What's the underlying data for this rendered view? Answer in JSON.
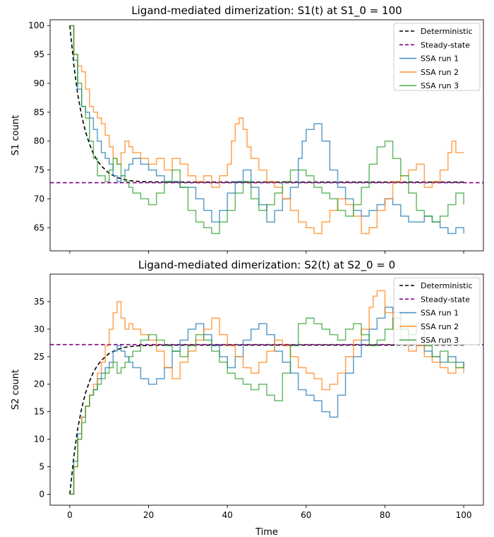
{
  "figure": {
    "xlabel": "Time"
  },
  "chart_data": [
    {
      "type": "line",
      "title": "Ligand-mediated dimerization: S1(t) at S1_0 = 100",
      "xlabel": "",
      "ylabel": "S1 count",
      "xlim": [
        -5,
        105
      ],
      "ylim": [
        61,
        101
      ],
      "xticks": [
        0,
        20,
        40,
        60,
        80,
        100
      ],
      "yticks": [
        65,
        70,
        75,
        80,
        85,
        90,
        95,
        100
      ],
      "legend_position": "top-right",
      "legend": [
        "Deterministic",
        "Steady-state",
        "SSA run 1",
        "SSA run 2",
        "SSA run 3"
      ],
      "series": [
        {
          "name": "Deterministic",
          "style": "dashed",
          "color": "#000000",
          "x": [
            0,
            1,
            2,
            3,
            4,
            5,
            6,
            7,
            8,
            10,
            12,
            14,
            16,
            18,
            20,
            25,
            30,
            40,
            60,
            100
          ],
          "y": [
            100,
            93.3,
            88.1,
            84.4,
            81.6,
            79.5,
            77.8,
            76.6,
            75.7,
            74.4,
            73.7,
            73.3,
            73.1,
            73.0,
            72.95,
            72.9,
            72.9,
            72.9,
            72.9,
            72.9
          ]
        },
        {
          "name": "Steady-state",
          "style": "dashed",
          "color": "#800080",
          "y_const": 72.8
        },
        {
          "name": "SSA run 1",
          "color": "#1f77b4",
          "x": [
            0,
            1,
            2,
            3,
            4,
            5,
            6,
            7,
            8,
            9,
            10,
            11,
            12,
            13,
            14,
            15,
            16,
            18,
            20,
            22,
            24,
            26,
            28,
            30,
            32,
            34,
            36,
            38,
            40,
            42,
            44,
            46,
            48,
            50,
            52,
            54,
            56,
            58,
            59,
            60,
            62,
            64,
            66,
            68,
            70,
            72,
            74,
            76,
            78,
            80,
            82,
            84,
            86,
            88,
            90,
            92,
            94,
            96,
            98,
            100
          ],
          "y": [
            100,
            94,
            89,
            86,
            85,
            84,
            82,
            80,
            78,
            77,
            76,
            74,
            73,
            74,
            75,
            76,
            77,
            76,
            75,
            74,
            73,
            73,
            72,
            72,
            70,
            68,
            66,
            68,
            71,
            73,
            75,
            72,
            69,
            66,
            68,
            70,
            72,
            77,
            80,
            82,
            83,
            80,
            75,
            72,
            70,
            68,
            67,
            68,
            69,
            70,
            69,
            67,
            66,
            66,
            67,
            66,
            65,
            64,
            65,
            64
          ]
        },
        {
          "name": "SSA run 2",
          "color": "#ff7f0e",
          "x": [
            0,
            1,
            2,
            3,
            4,
            5,
            6,
            7,
            8,
            9,
            10,
            11,
            12,
            13,
            14,
            15,
            16,
            18,
            20,
            22,
            24,
            26,
            28,
            30,
            32,
            34,
            36,
            38,
            40,
            41,
            42,
            43,
            44,
            45,
            46,
            48,
            50,
            52,
            54,
            56,
            58,
            60,
            62,
            64,
            66,
            68,
            70,
            72,
            74,
            76,
            78,
            80,
            82,
            84,
            86,
            88,
            90,
            92,
            94,
            96,
            97,
            98,
            100
          ],
          "y": [
            100,
            95,
            93,
            92,
            89,
            86,
            85,
            84,
            83,
            81,
            79,
            77,
            76,
            78,
            80,
            79,
            78,
            77,
            76,
            77,
            75,
            77,
            76,
            74,
            73,
            74,
            72,
            74,
            76,
            80,
            83,
            84,
            82,
            79,
            77,
            75,
            73,
            72,
            70,
            68,
            66,
            65,
            64,
            66,
            68,
            70,
            69,
            67,
            64,
            65,
            68,
            70,
            73,
            74,
            75,
            76,
            72,
            73,
            75,
            78,
            80,
            78,
            78
          ]
        },
        {
          "name": "SSA run 3",
          "color": "#2ca02c",
          "x": [
            0,
            1,
            2,
            3,
            4,
            5,
            6,
            7,
            8,
            9,
            10,
            11,
            12,
            13,
            14,
            15,
            16,
            18,
            20,
            22,
            24,
            26,
            28,
            30,
            32,
            34,
            36,
            38,
            40,
            42,
            44,
            46,
            48,
            50,
            52,
            54,
            56,
            58,
            60,
            62,
            64,
            66,
            68,
            70,
            72,
            74,
            76,
            78,
            80,
            82,
            84,
            86,
            88,
            90,
            92,
            94,
            96,
            98,
            100
          ],
          "y": [
            100,
            95,
            90,
            86,
            84,
            80,
            77,
            74,
            74,
            73,
            75,
            77,
            76,
            74,
            73,
            72,
            71,
            70,
            69,
            71,
            73,
            75,
            72,
            68,
            66,
            65,
            64,
            66,
            68,
            71,
            73,
            70,
            68,
            69,
            71,
            73,
            75,
            75,
            74,
            72,
            71,
            70,
            68,
            67,
            69,
            72,
            76,
            79,
            80,
            77,
            74,
            71,
            68,
            67,
            66,
            67,
            69,
            71,
            69
          ]
        }
      ]
    },
    {
      "type": "line",
      "title": "Ligand-mediated dimerization: S2(t) at S2_0 = 0",
      "xlabel": "Time",
      "ylabel": "S2 count",
      "xlim": [
        -5,
        105
      ],
      "ylim": [
        -2,
        40
      ],
      "xticks": [
        0,
        20,
        40,
        60,
        80,
        100
      ],
      "yticks": [
        0,
        5,
        10,
        15,
        20,
        25,
        30,
        35
      ],
      "legend_position": "top-right",
      "legend": [
        "Deterministic",
        "Steady-state",
        "SSA run 1",
        "SSA run 2",
        "SSA run 3"
      ],
      "series": [
        {
          "name": "Deterministic",
          "style": "dashed",
          "color": "#000000",
          "x": [
            0,
            1,
            2,
            3,
            4,
            5,
            6,
            7,
            8,
            10,
            12,
            14,
            16,
            18,
            20,
            25,
            30,
            40,
            60,
            100
          ],
          "y": [
            0,
            6.7,
            11.9,
            15.6,
            18.4,
            20.5,
            22.2,
            23.4,
            24.3,
            25.6,
            26.3,
            26.7,
            26.9,
            27.0,
            27.05,
            27.1,
            27.1,
            27.1,
            27.1,
            27.1
          ]
        },
        {
          "name": "Steady-state",
          "style": "dashed",
          "color": "#800080",
          "y_const": 27.2
        },
        {
          "name": "SSA run 1",
          "color": "#1f77b4",
          "x": [
            0,
            1,
            2,
            3,
            4,
            5,
            6,
            7,
            8,
            9,
            10,
            11,
            12,
            13,
            14,
            15,
            16,
            18,
            20,
            22,
            24,
            26,
            28,
            30,
            32,
            34,
            36,
            38,
            40,
            42,
            44,
            46,
            48,
            50,
            52,
            54,
            56,
            58,
            60,
            62,
            64,
            66,
            68,
            70,
            72,
            74,
            76,
            78,
            80,
            82,
            84,
            86,
            88,
            90,
            92,
            94,
            96,
            98,
            100
          ],
          "y": [
            0,
            6,
            11,
            14,
            16,
            18,
            19,
            21,
            22,
            23,
            24,
            26,
            27,
            26,
            25,
            24,
            23,
            21,
            20,
            21,
            23,
            26,
            28,
            30,
            31,
            29,
            27,
            25,
            23,
            25,
            28,
            30,
            31,
            29,
            26,
            24,
            22,
            19,
            18,
            17,
            15,
            14,
            18,
            22,
            25,
            28,
            30,
            32,
            34,
            33,
            30,
            28,
            27,
            26,
            25,
            24,
            25,
            24,
            23
          ]
        },
        {
          "name": "SSA run 2",
          "color": "#ff7f0e",
          "x": [
            0,
            1,
            2,
            3,
            4,
            5,
            6,
            7,
            8,
            9,
            10,
            11,
            12,
            13,
            14,
            15,
            16,
            18,
            20,
            22,
            24,
            26,
            28,
            30,
            32,
            34,
            36,
            38,
            40,
            42,
            44,
            46,
            48,
            50,
            52,
            54,
            56,
            58,
            60,
            62,
            64,
            66,
            68,
            70,
            72,
            74,
            76,
            77,
            78,
            80,
            82,
            84,
            86,
            88,
            90,
            92,
            94,
            96,
            98,
            100
          ],
          "y": [
            0,
            5,
            10,
            14,
            16,
            18,
            20,
            22,
            24,
            27,
            30,
            33,
            35,
            32,
            30,
            31,
            30,
            29,
            28,
            26,
            23,
            21,
            24,
            26,
            28,
            30,
            32,
            29,
            27,
            25,
            23,
            22,
            24,
            26,
            28,
            27,
            25,
            23,
            22,
            21,
            19,
            20,
            22,
            25,
            28,
            30,
            34,
            36,
            37,
            33,
            30,
            28,
            26,
            27,
            25,
            24,
            23,
            22,
            23,
            22
          ]
        },
        {
          "name": "SSA run 3",
          "color": "#2ca02c",
          "x": [
            0,
            1,
            2,
            3,
            4,
            5,
            6,
            7,
            8,
            9,
            10,
            11,
            12,
            13,
            14,
            15,
            16,
            18,
            20,
            22,
            24,
            26,
            28,
            30,
            32,
            34,
            36,
            38,
            40,
            42,
            44,
            46,
            48,
            50,
            52,
            54,
            56,
            58,
            60,
            62,
            64,
            66,
            68,
            70,
            72,
            74,
            76,
            78,
            80,
            82,
            84,
            86,
            88,
            90,
            92,
            94,
            96,
            98,
            100
          ],
          "y": [
            0,
            5,
            10,
            13,
            16,
            18,
            19,
            20,
            21,
            22,
            23,
            24,
            22,
            23,
            24,
            25,
            26,
            28,
            29,
            28,
            27,
            26,
            25,
            27,
            29,
            28,
            26,
            24,
            22,
            21,
            20,
            19,
            20,
            18,
            17,
            22,
            27,
            31,
            32,
            31,
            30,
            29,
            28,
            30,
            31,
            29,
            27,
            28,
            30,
            32,
            30,
            29,
            31,
            27,
            25,
            26,
            24,
            23,
            24
          ]
        }
      ]
    }
  ]
}
